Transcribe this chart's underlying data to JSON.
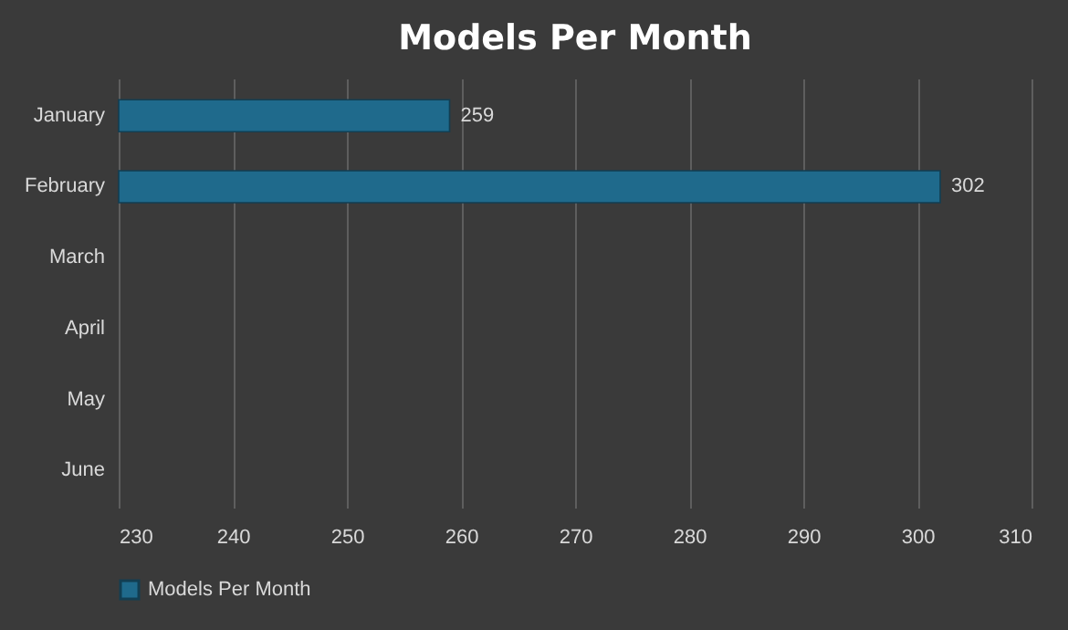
{
  "chart_data": {
    "type": "bar",
    "orientation": "horizontal",
    "title": "Models Per Month",
    "categories": [
      "January",
      "February",
      "March",
      "April",
      "May",
      "June"
    ],
    "series": [
      {
        "name": "Models Per Month",
        "color": "#1f6a8c",
        "values": [
          259,
          302,
          null,
          null,
          null,
          null
        ]
      }
    ],
    "xlim": [
      230,
      310
    ],
    "xticks": [
      230,
      240,
      250,
      260,
      270,
      280,
      290,
      300,
      310
    ],
    "grid": "x",
    "legend": "bottom",
    "data_labels": true
  }
}
